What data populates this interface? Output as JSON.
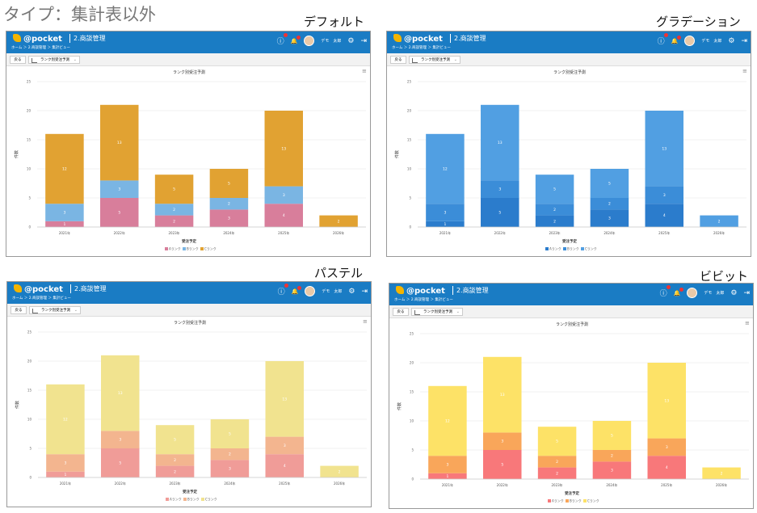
{
  "page_title": "タイプ：集計表以外",
  "app": {
    "logo": "pocket",
    "module": "2.商談管理",
    "breadcrumb": "ホーム ＞ 2.商談管理 ＞ 集計ビュー",
    "user": "デモ　太郎",
    "back_label": "戻る",
    "view_select": "ランク別受注予測"
  },
  "chart_data": [
    {
      "theme": "デフォルト",
      "type": "bar",
      "stacked": true,
      "title": "ランク別受注予測",
      "xlabel": "受注予定",
      "ylabel": "件数",
      "ylim": [
        0,
        25
      ],
      "yticks": [
        0,
        5,
        10,
        15,
        20,
        25
      ],
      "grid": true,
      "legend": "bottom",
      "categories": [
        "2021年",
        "2022年",
        "2023年",
        "2024年",
        "2025年",
        "2026年"
      ],
      "series": [
        {
          "name": "Aランク",
          "values": [
            1,
            5,
            2,
            3,
            4,
            0
          ],
          "color": "#d87e9b"
        },
        {
          "name": "Bランク",
          "values": [
            3,
            3,
            2,
            2,
            3,
            0
          ],
          "color": "#7ab5e3"
        },
        {
          "name": "Cランク",
          "values": [
            12,
            13,
            5,
            5,
            13,
            2
          ],
          "color": "#e1a232"
        }
      ]
    },
    {
      "theme": "グラデーション",
      "type": "bar",
      "stacked": true,
      "title": "ランク別受注予測",
      "xlabel": "受注予定",
      "ylabel": "件数",
      "ylim": [
        0,
        25
      ],
      "yticks": [
        0,
        5,
        10,
        15,
        20,
        25
      ],
      "grid": true,
      "legend": "bottom",
      "categories": [
        "2021年",
        "2022年",
        "2023年",
        "2024年",
        "2025年",
        "2026年"
      ],
      "series": [
        {
          "name": "Aランク",
          "values": [
            1,
            5,
            2,
            3,
            4,
            0
          ],
          "color": "#2b7ccc"
        },
        {
          "name": "Bランク",
          "values": [
            3,
            3,
            2,
            2,
            3,
            0
          ],
          "color": "#3b8dd8"
        },
        {
          "name": "Cランク",
          "values": [
            12,
            13,
            5,
            5,
            13,
            2
          ],
          "color": "#519fe2"
        }
      ]
    },
    {
      "theme": "パステル",
      "type": "bar",
      "stacked": true,
      "title": "ランク別受注予測",
      "xlabel": "受注予定",
      "ylabel": "件数",
      "ylim": [
        0,
        25
      ],
      "yticks": [
        0,
        5,
        10,
        15,
        20,
        25
      ],
      "grid": true,
      "legend": "bottom",
      "categories": [
        "2021年",
        "2022年",
        "2023年",
        "2024年",
        "2025年",
        "2026年"
      ],
      "series": [
        {
          "name": "Aランク",
          "values": [
            1,
            5,
            2,
            3,
            4,
            0
          ],
          "color": "#f09c98"
        },
        {
          "name": "Bランク",
          "values": [
            3,
            3,
            2,
            2,
            3,
            0
          ],
          "color": "#f3b58f"
        },
        {
          "name": "Cランク",
          "values": [
            12,
            13,
            5,
            5,
            13,
            2
          ],
          "color": "#f1e38f"
        }
      ]
    },
    {
      "theme": "ビビット",
      "type": "bar",
      "stacked": true,
      "title": "ランク別受注予測",
      "xlabel": "受注予定",
      "ylabel": "件数",
      "ylim": [
        0,
        25
      ],
      "yticks": [
        0,
        5,
        10,
        15,
        20,
        25
      ],
      "grid": true,
      "legend": "bottom",
      "categories": [
        "2021年",
        "2022年",
        "2023年",
        "2024年",
        "2025年",
        "2026年"
      ],
      "series": [
        {
          "name": "Aランク",
          "values": [
            1,
            5,
            2,
            3,
            4,
            0
          ],
          "color": "#f8787a"
        },
        {
          "name": "Bランク",
          "values": [
            3,
            3,
            2,
            2,
            3,
            0
          ],
          "color": "#f9a65a"
        },
        {
          "name": "Cランク",
          "values": [
            12,
            13,
            5,
            5,
            13,
            2
          ],
          "color": "#fde267"
        }
      ]
    }
  ]
}
